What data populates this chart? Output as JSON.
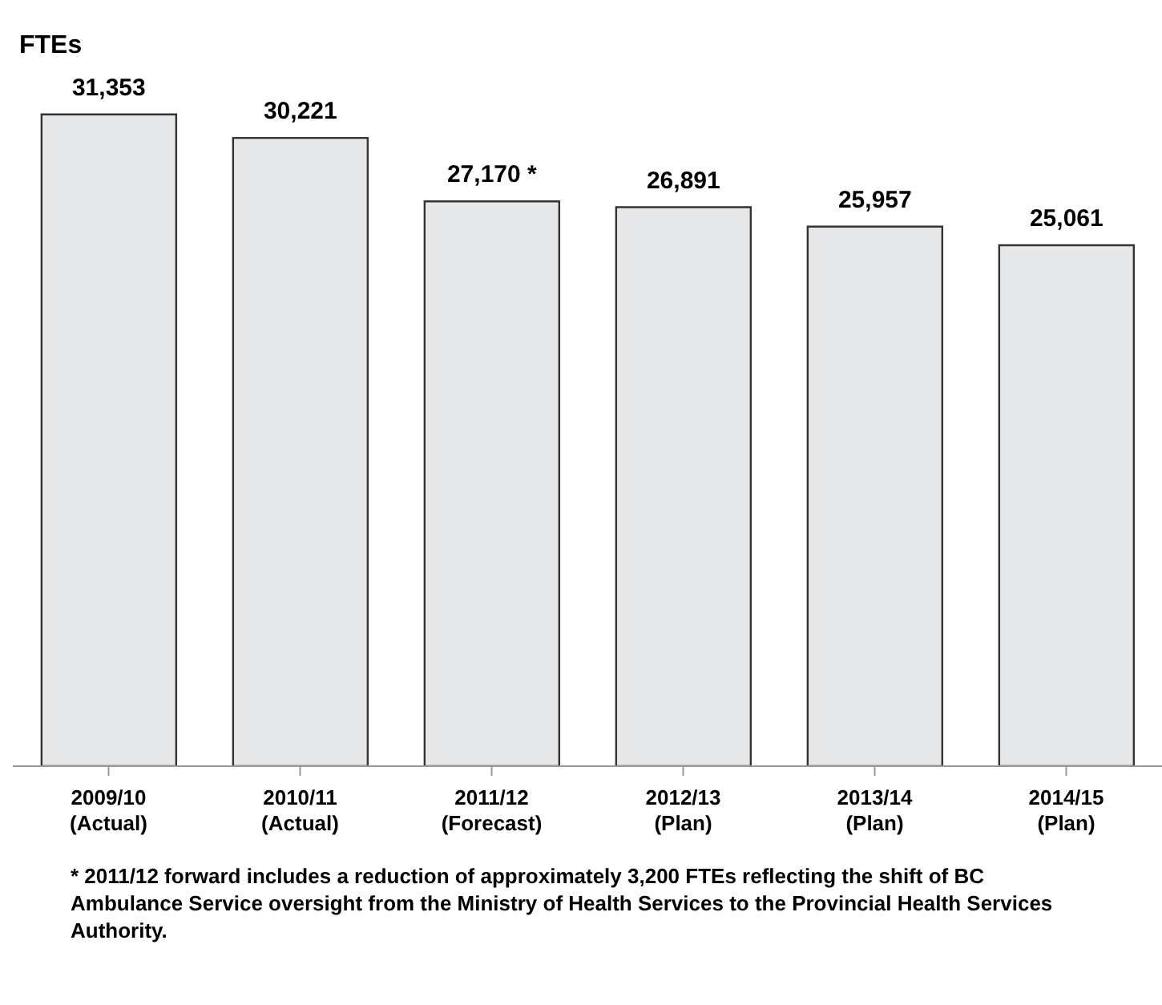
{
  "chart_data": {
    "type": "bar",
    "title": "FTEs",
    "categories": [
      "2009/10\n(Actual)",
      "2010/11\n(Actual)",
      "2011/12\n(Forecast)",
      "2012/13\n(Plan)",
      "2013/14\n(Plan)",
      "2014/15\n(Plan)"
    ],
    "values": [
      31353,
      30221,
      27170,
      26891,
      25957,
      25061
    ],
    "value_labels": [
      "31,353",
      "30,221",
      "27,170 *",
      "26,891",
      "25,957",
      "25,061"
    ],
    "color": "#e6e7e9",
    "tick_labels": "x",
    "grid": false,
    "annotations": [
      "* 2011/12 forward includes a reduction of approximately 3,200 FTEs reflecting the shift of BC Ambulance Service oversight from the Ministry of Health Services to the Provincial Health Services Authority."
    ]
  }
}
